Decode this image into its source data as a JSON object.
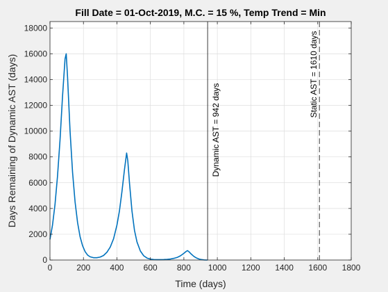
{
  "chart_data": {
    "type": "line",
    "title": "Fill Date = 01-Oct-2019, M.C. = 15 %, Temp Trend = Min",
    "xlabel": "Time (days)",
    "ylabel": "Days Remaining of Dynamic AST (days)",
    "xlim": [
      0,
      1800
    ],
    "ylim": [
      0,
      18500
    ],
    "xticks": [
      0,
      200,
      400,
      600,
      800,
      1000,
      1200,
      1400,
      1600,
      1800
    ],
    "yticks": [
      0,
      2000,
      4000,
      6000,
      8000,
      10000,
      12000,
      14000,
      16000,
      18000
    ],
    "grid": true,
    "series": [
      {
        "color": "#0072bd",
        "x": [
          0,
          15,
          30,
          45,
          60,
          75,
          90,
          97,
          105,
          120,
          135,
          150,
          165,
          180,
          195,
          210,
          225,
          240,
          260,
          280,
          300,
          320,
          340,
          360,
          380,
          400,
          415,
          430,
          445,
          458,
          465,
          475,
          490,
          505,
          520,
          540,
          560,
          580,
          600,
          620,
          640,
          660,
          680,
          700,
          720,
          740,
          760,
          780,
          800,
          815,
          822,
          830,
          845,
          860,
          875,
          890,
          905,
          920,
          930,
          942
        ],
        "y": [
          1600,
          2700,
          4300,
          6500,
          9300,
          12700,
          15600,
          16000,
          14200,
          10000,
          6800,
          4500,
          2900,
          1800,
          1100,
          650,
          380,
          250,
          180,
          180,
          230,
          350,
          600,
          1000,
          1650,
          2700,
          3800,
          5300,
          7000,
          8300,
          7700,
          6000,
          3800,
          2300,
          1400,
          700,
          330,
          150,
          70,
          40,
          30,
          30,
          35,
          50,
          80,
          130,
          200,
          330,
          520,
          680,
          730,
          650,
          450,
          280,
          160,
          80,
          35,
          10,
          3,
          0
        ]
      }
    ],
    "vlines": [
      {
        "x": 942,
        "style": "solid",
        "label": "Dynamic AST = 942 days"
      },
      {
        "x": 1610,
        "style": "dashed",
        "label": "Static AST = 1610 days"
      }
    ]
  }
}
